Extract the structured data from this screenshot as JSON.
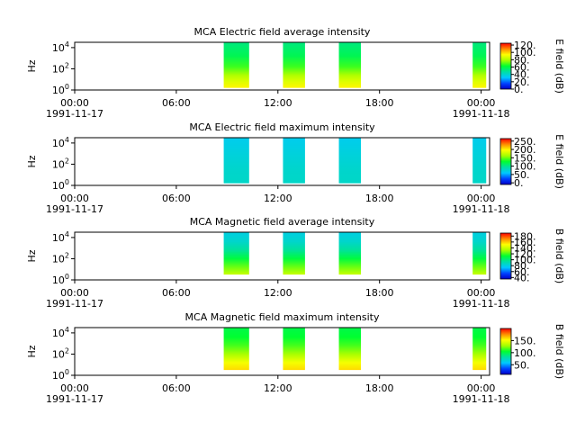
{
  "chart_data": [
    {
      "type": "heatmap",
      "title": "MCA  Electric field average intensity",
      "ylabel": "Hz",
      "y_scale": "log",
      "ylim": [
        1,
        31623
      ],
      "y_ticks": [
        {
          "value": 1,
          "base": "10",
          "exp": "0"
        },
        {
          "value": 100,
          "base": "10",
          "exp": "2"
        },
        {
          "value": 10000,
          "base": "10",
          "exp": "4"
        }
      ],
      "x_ticks": [
        {
          "time": "00:00",
          "date": "1991-11-17"
        },
        {
          "time": "06:00",
          "date": ""
        },
        {
          "time": "12:00",
          "date": ""
        },
        {
          "time": "18:00",
          "date": ""
        },
        {
          "time": "00:00",
          "date": "1991-11-18"
        }
      ],
      "x_range_hours": [
        0,
        24.5
      ],
      "segments_hours": [
        [
          8.8,
          10.3
        ],
        [
          12.3,
          13.6
        ],
        [
          15.6,
          16.9
        ],
        [
          23.5,
          24.3
        ]
      ],
      "colorbar": {
        "label": "E field (dB)",
        "range": [
          0,
          125
        ],
        "ticks": [
          {
            "value": 0,
            "text": "0."
          },
          {
            "value": 20,
            "text": "20."
          },
          {
            "value": 40,
            "text": "40."
          },
          {
            "value": 60,
            "text": "60."
          },
          {
            "value": 80,
            "text": "80."
          },
          {
            "value": 100,
            "text": "100."
          },
          {
            "value": 120,
            "text": "120."
          }
        ]
      },
      "color_profile": [
        {
          "y_exp": 0.2,
          "value": 95
        },
        {
          "y_exp": 0.8,
          "value": 88
        },
        {
          "y_exp": 1.4,
          "value": 80
        },
        {
          "y_exp": 2.2,
          "value": 68
        },
        {
          "y_exp": 3.2,
          "value": 58
        },
        {
          "y_exp": 4.5,
          "value": 52
        }
      ]
    },
    {
      "type": "heatmap",
      "title": "MCA  Electric field maximum intensity",
      "ylabel": "Hz",
      "y_scale": "log",
      "ylim": [
        1,
        31623
      ],
      "y_ticks": [
        {
          "value": 1,
          "base": "10",
          "exp": "0"
        },
        {
          "value": 100,
          "base": "10",
          "exp": "2"
        },
        {
          "value": 10000,
          "base": "10",
          "exp": "4"
        }
      ],
      "x_ticks": [
        {
          "time": "00:00",
          "date": "1991-11-17"
        },
        {
          "time": "06:00",
          "date": ""
        },
        {
          "time": "12:00",
          "date": ""
        },
        {
          "time": "18:00",
          "date": ""
        },
        {
          "time": "00:00",
          "date": "1991-11-18"
        }
      ],
      "x_range_hours": [
        0,
        24.5
      ],
      "segments_hours": [
        [
          8.8,
          10.3
        ],
        [
          12.3,
          13.6
        ],
        [
          15.6,
          16.9
        ],
        [
          23.5,
          24.3
        ]
      ],
      "colorbar": {
        "label": "E field (dB)",
        "range": [
          -10,
          265
        ],
        "ticks": [
          {
            "value": 0,
            "text": "0."
          },
          {
            "value": 50,
            "text": "50."
          },
          {
            "value": 100,
            "text": "100."
          },
          {
            "value": 150,
            "text": "150."
          },
          {
            "value": 200,
            "text": "200."
          },
          {
            "value": 250,
            "text": "250."
          }
        ]
      },
      "color_profile": [
        {
          "y_exp": 0.2,
          "value": 80
        },
        {
          "y_exp": 1.5,
          "value": 78
        },
        {
          "y_exp": 3.0,
          "value": 72
        },
        {
          "y_exp": 4.5,
          "value": 65
        }
      ]
    },
    {
      "type": "heatmap",
      "title": "MCA  Magnetic field average intensity",
      "ylabel": "Hz",
      "y_scale": "log",
      "ylim": [
        1,
        31623
      ],
      "y_ticks": [
        {
          "value": 1,
          "base": "10",
          "exp": "0"
        },
        {
          "value": 100,
          "base": "10",
          "exp": "2"
        },
        {
          "value": 10000,
          "base": "10",
          "exp": "4"
        }
      ],
      "x_ticks": [
        {
          "time": "00:00",
          "date": "1991-11-17"
        },
        {
          "time": "06:00",
          "date": ""
        },
        {
          "time": "12:00",
          "date": ""
        },
        {
          "time": "18:00",
          "date": ""
        },
        {
          "time": "00:00",
          "date": "1991-11-18"
        }
      ],
      "x_range_hours": [
        0,
        24.5
      ],
      "segments_hours": [
        [
          8.8,
          10.3
        ],
        [
          12.3,
          13.6
        ],
        [
          15.6,
          16.9
        ],
        [
          23.5,
          24.3
        ]
      ],
      "colorbar": {
        "label": "B field (dB)",
        "range": [
          35,
          190
        ],
        "ticks": [
          {
            "value": 40,
            "text": "40."
          },
          {
            "value": 60,
            "text": "60."
          },
          {
            "value": 80,
            "text": "80."
          },
          {
            "value": 100,
            "text": "100."
          },
          {
            "value": 120,
            "text": "120."
          },
          {
            "value": 140,
            "text": "140."
          },
          {
            "value": 160,
            "text": "160."
          },
          {
            "value": 180,
            "text": "180."
          }
        ]
      },
      "color_profile": [
        {
          "y_exp": 0.5,
          "value": 140
        },
        {
          "y_exp": 1.2,
          "value": 125
        },
        {
          "y_exp": 2.0,
          "value": 110
        },
        {
          "y_exp": 2.8,
          "value": 95
        },
        {
          "y_exp": 3.6,
          "value": 85
        },
        {
          "y_exp": 4.5,
          "value": 80
        }
      ]
    },
    {
      "type": "heatmap",
      "title": "MCA  Magnetic field maximum intensity",
      "ylabel": "Hz",
      "y_scale": "log",
      "ylim": [
        1,
        31623
      ],
      "y_ticks": [
        {
          "value": 1,
          "base": "10",
          "exp": "0"
        },
        {
          "value": 100,
          "base": "10",
          "exp": "2"
        },
        {
          "value": 10000,
          "base": "10",
          "exp": "4"
        }
      ],
      "x_ticks": [
        {
          "time": "00:00",
          "date": "1991-11-17"
        },
        {
          "time": "06:00",
          "date": ""
        },
        {
          "time": "12:00",
          "date": ""
        },
        {
          "time": "18:00",
          "date": ""
        },
        {
          "time": "00:00",
          "date": "1991-11-18"
        }
      ],
      "x_range_hours": [
        0,
        24.5
      ],
      "segments_hours": [
        [
          8.8,
          10.3
        ],
        [
          12.3,
          13.6
        ],
        [
          15.6,
          16.9
        ],
        [
          23.5,
          24.3
        ]
      ],
      "colorbar": {
        "label": "B field (dB)",
        "range": [
          10,
          200
        ],
        "ticks": [
          {
            "value": 50,
            "text": "50."
          },
          {
            "value": 100,
            "text": "100."
          },
          {
            "value": 150,
            "text": "150."
          }
        ]
      },
      "color_profile": [
        {
          "y_exp": 0.5,
          "value": 160
        },
        {
          "y_exp": 1.2,
          "value": 150
        },
        {
          "y_exp": 2.0,
          "value": 130
        },
        {
          "y_exp": 2.8,
          "value": 115
        },
        {
          "y_exp": 3.6,
          "value": 105
        },
        {
          "y_exp": 4.5,
          "value": 100
        }
      ]
    }
  ]
}
